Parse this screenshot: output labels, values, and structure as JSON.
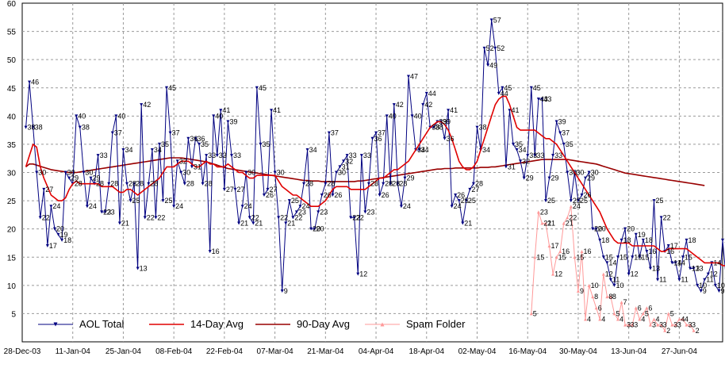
{
  "chart_data": {
    "type": "line",
    "title": "",
    "xlabel": "",
    "ylabel": "",
    "xlim": [
      "2003-12-28",
      "2004-07-09"
    ],
    "ylim": [
      0,
      60
    ],
    "y_ticks": [
      5,
      10,
      15,
      20,
      25,
      30,
      35,
      40,
      45,
      50,
      55,
      60
    ],
    "x_ticks": [
      "28-Dec-03",
      "11-Jan-04",
      "25-Jan-04",
      "08-Feb-04",
      "22-Feb-04",
      "07-Mar-04",
      "21-Mar-04",
      "04-Apr-04",
      "18-Apr-04",
      "02-May-04",
      "16-May-04",
      "30-May-04",
      "13-Jun-04",
      "27-Jun-04"
    ],
    "grid": true,
    "legend_position": "bottom-left",
    "series": [
      {
        "name": "AOL Total",
        "color": "#000080",
        "marker": "triangle-down",
        "start": "2003-12-29",
        "values": [
          38,
          46,
          38,
          30,
          22,
          27,
          17,
          24,
          20,
          19,
          18,
          30,
          29,
          28,
          40,
          38,
          30,
          24,
          29,
          28,
          33,
          23,
          23,
          28,
          37,
          40,
          21,
          34,
          28,
          25,
          28,
          13,
          42,
          22,
          28,
          34,
          22,
          35,
          25,
          45,
          37,
          24,
          32,
          30,
          28,
          36,
          31,
          36,
          35,
          28,
          33,
          16,
          40,
          33,
          41,
          27,
          39,
          33,
          27,
          21,
          24,
          30,
          22,
          21,
          45,
          35,
          26,
          27,
          41,
          30,
          22,
          9,
          21,
          25,
          22,
          23,
          24,
          28,
          34,
          20,
          20,
          23,
          26,
          28,
          37,
          26,
          30,
          31,
          32,
          33,
          22,
          22,
          12,
          33,
          23,
          28,
          36,
          37,
          26,
          28,
          40,
          28,
          42,
          28,
          24,
          29,
          47,
          40,
          34,
          34,
          42,
          44,
          38,
          38,
          39,
          39,
          36,
          41,
          24,
          26,
          25,
          21,
          25,
          27,
          28,
          38,
          34,
          52,
          49,
          57,
          52,
          44,
          45,
          31,
          41,
          35,
          34,
          32,
          29,
          33,
          45,
          33,
          43,
          43,
          25,
          29,
          33,
          39,
          37,
          35,
          30,
          25,
          30,
          25,
          26,
          29,
          30,
          20,
          20,
          18,
          15,
          14,
          11,
          10,
          15,
          18,
          20,
          12,
          15,
          19,
          15,
          18,
          16,
          13,
          25,
          11,
          22,
          16,
          17,
          14,
          14,
          11,
          15,
          18,
          13,
          13,
          10,
          9,
          11,
          12,
          14,
          10,
          9,
          18,
          11,
          10,
          9,
          11,
          14
        ]
      },
      {
        "name": "14-Day Avg",
        "color": "#e00000",
        "start": "2003-12-29",
        "values": [
          31,
          33,
          35,
          34.5,
          31,
          29,
          27.5,
          26,
          25.5,
          25,
          25,
          25.5,
          27,
          28,
          28.5,
          28,
          28,
          28,
          28,
          28,
          28,
          27.5,
          27.5,
          27.5,
          27.5,
          27,
          26.5,
          26.5,
          27,
          27,
          26.5,
          26,
          26.5,
          27,
          27.5,
          28,
          28.5,
          29,
          30,
          31,
          31,
          31,
          31.5,
          32,
          32,
          32,
          31.5,
          31,
          31,
          31.5,
          32,
          31.5,
          31.5,
          31,
          31,
          31,
          31.5,
          31,
          30.5,
          30,
          30,
          29.5,
          29,
          29,
          29.5,
          29.5,
          29.5,
          29.5,
          29.5,
          29.5,
          28.5,
          27.5,
          27,
          26.5,
          26,
          26,
          25.5,
          25,
          24.5,
          24,
          24,
          24,
          24.5,
          25,
          26,
          27,
          27.5,
          27.5,
          27.5,
          27.5,
          27,
          27,
          27,
          27,
          27,
          27.5,
          28,
          28.5,
          29,
          29,
          29.5,
          30,
          30.5,
          30.5,
          31,
          31.5,
          32,
          33,
          34,
          35,
          36,
          37,
          38,
          38.5,
          39,
          39,
          38.5,
          37.5,
          36,
          34,
          32,
          31,
          30.5,
          30.5,
          31,
          32,
          34,
          36,
          38,
          40,
          42,
          43,
          43.5,
          43.5,
          42,
          40,
          38,
          37.5,
          37.5,
          37.5,
          37.5,
          37.5,
          37,
          36.5,
          36,
          36,
          35.5,
          35,
          34,
          33,
          32,
          31,
          30,
          29,
          28,
          27,
          26,
          25,
          24,
          23,
          21.5,
          20,
          19,
          18,
          17.5,
          17.5,
          17.5,
          17.5,
          17,
          17,
          17,
          17,
          17,
          17,
          17,
          16.5,
          16,
          16,
          16.5,
          16.5,
          16.5,
          16.5,
          16.5,
          16.5,
          16,
          15.5,
          15,
          14.5,
          14,
          14,
          14,
          14,
          14,
          13.5,
          13.5,
          13.5,
          13,
          13,
          13,
          12.5,
          12,
          12
        ]
      },
      {
        "name": "90-Day Avg",
        "color": "#990000",
        "start": "2003-12-29",
        "values": [
          31,
          31.5,
          31.5,
          31.3,
          31.1,
          30.9,
          30.7,
          30.5,
          30.4,
          30.3,
          30.2,
          30.1,
          30.0,
          30.0,
          30.0,
          30.1,
          30.2,
          30.3,
          30.4,
          30.5,
          30.6,
          30.7,
          30.8,
          30.9,
          31.0,
          31.1,
          31.2,
          31.3,
          31.4,
          31.5,
          31.6,
          31.7,
          31.8,
          31.9,
          32.0,
          32.1,
          32.2,
          32.3,
          32.4,
          32.5,
          32.6,
          32.6,
          32.6,
          32.6,
          32.5,
          32.4,
          32.3,
          32.2,
          32.1,
          32.0,
          31.9,
          31.7,
          31.5,
          31.3,
          31.1,
          30.9,
          30.7,
          30.6,
          30.5,
          30.4,
          30.3,
          30.2,
          30.1,
          30.0,
          29.9,
          29.8,
          29.7,
          29.6,
          29.5,
          29.4,
          29.3,
          29.2,
          29.1,
          29.0,
          28.9,
          28.8,
          28.7,
          28.6,
          28.6,
          28.5,
          28.5,
          28.5,
          28.4,
          28.4,
          28.4,
          28.4,
          28.4,
          28.4,
          28.4,
          28.4,
          28.4,
          28.4,
          28.5,
          28.5,
          28.6,
          28.7,
          28.8,
          28.9,
          29.0,
          29.1,
          29.2,
          29.3,
          29.4,
          29.5,
          29.6,
          29.7,
          29.8,
          29.9,
          30.0,
          30.1,
          30.2,
          30.3,
          30.4,
          30.5,
          30.6,
          30.6,
          30.7,
          30.7,
          30.7,
          30.8,
          30.8,
          30.8,
          30.8,
          30.8,
          30.8,
          30.8,
          30.9,
          30.9,
          30.9,
          31.0,
          31.0,
          31.1,
          31.2,
          31.3,
          31.4,
          31.5,
          31.6,
          31.7,
          31.8,
          31.9,
          32.0,
          32.1,
          32.2,
          32.3,
          32.3,
          32.3,
          32.3,
          32.3,
          32.3,
          32.3,
          32.3,
          32.2,
          32.1,
          32.0,
          31.9,
          31.8,
          31.7,
          31.6,
          31.5,
          31.3,
          31.1,
          30.9,
          30.7,
          30.5,
          30.3,
          30.1,
          29.9,
          29.8,
          29.7,
          29.6,
          29.5,
          29.4,
          29.3,
          29.2,
          29.1,
          29.0,
          28.9,
          28.8,
          28.7,
          28.6,
          28.5,
          28.4,
          28.3,
          28.2,
          28.1,
          28.0,
          27.9,
          27.8,
          27.7
        ]
      },
      {
        "name": "Spam Folder",
        "color": "#ff9999",
        "marker": "triangle-up",
        "start": "2004-05-17",
        "values": [
          5,
          15,
          23,
          21,
          21,
          17,
          12,
          15,
          16,
          21,
          22,
          24,
          15,
          9,
          16,
          4,
          10,
          8,
          6,
          4,
          12,
          8,
          8,
          5,
          4,
          7,
          3,
          3,
          3,
          6,
          4,
          5,
          6,
          3,
          4,
          3,
          3,
          2,
          5,
          3,
          3,
          4,
          4,
          3,
          3,
          2
        ]
      }
    ]
  }
}
